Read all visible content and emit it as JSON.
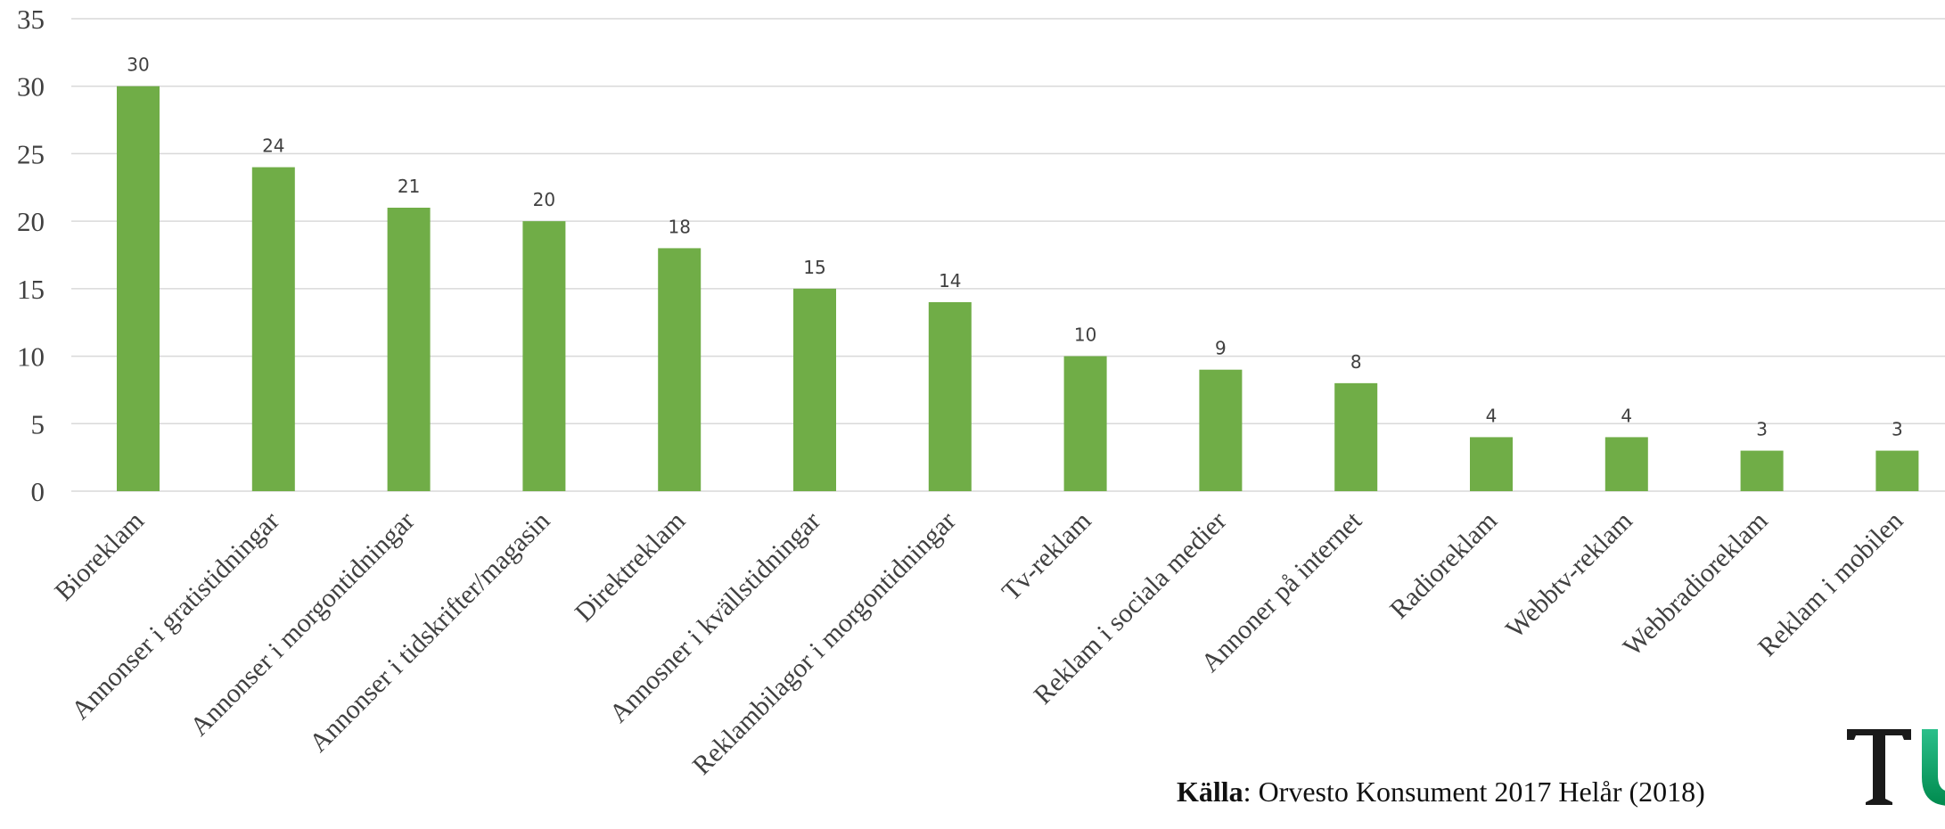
{
  "chart_data": {
    "type": "bar",
    "categories": [
      "Bioreklam",
      "Annonser i gratistidningar",
      "Annonser i morgontidningar",
      "Annonser i tidskrifter/magasin",
      "Direktreklam",
      "Annosner i kvällstidningar",
      "Reklambilagor i morgontidningar",
      "Tv-reklam",
      "Reklam i sociala medier",
      "Annoner på internet",
      "Radioreklam",
      "Webbtv-reklam",
      "Webbradioreklam",
      "Reklam i mobilen"
    ],
    "values": [
      30,
      24,
      21,
      20,
      18,
      15,
      14,
      10,
      9,
      8,
      4,
      4,
      3,
      3
    ],
    "ylim": [
      0,
      35
    ],
    "yticks": [
      0,
      5,
      10,
      15,
      20,
      25,
      30,
      35
    ],
    "grid": true,
    "bar_color": "#70ad47",
    "data_labels": true
  },
  "source": {
    "label": "Källa",
    "text": ": Orvesto Konsument 2017 Helår (2018)"
  },
  "logo": {
    "letters": "TU",
    "colors": [
      "#1a1a1a",
      "#00a86b"
    ]
  }
}
